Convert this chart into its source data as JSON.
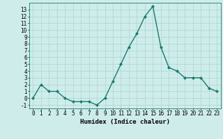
{
  "xlabel": "Humidex (Indice chaleur)",
  "x": [
    0,
    1,
    2,
    3,
    4,
    5,
    6,
    7,
    8,
    9,
    10,
    11,
    12,
    13,
    14,
    15,
    16,
    17,
    18,
    19,
    20,
    21,
    22,
    23
  ],
  "y": [
    0,
    2,
    1,
    1,
    0,
    -0.5,
    -0.5,
    -0.5,
    -1,
    0,
    2.5,
    5,
    7.5,
    9.5,
    12,
    13.5,
    7.5,
    4.5,
    4,
    3,
    3,
    3,
    1.5,
    1
  ],
  "line_color": "#1a7a6e",
  "marker": "D",
  "marker_size": 2.0,
  "bg_color": "#ceecea",
  "grid_color": "#aad4d0",
  "ylim": [
    -1.5,
    14.0
  ],
  "xlim": [
    -0.5,
    23.5
  ],
  "yticks": [
    -1,
    0,
    1,
    2,
    3,
    4,
    5,
    6,
    7,
    8,
    9,
    10,
    11,
    12,
    13
  ],
  "xticks": [
    0,
    1,
    2,
    3,
    4,
    5,
    6,
    7,
    8,
    9,
    10,
    11,
    12,
    13,
    14,
    15,
    16,
    17,
    18,
    19,
    20,
    21,
    22,
    23
  ],
  "xlabel_fontsize": 6.5,
  "tick_fontsize": 5.5,
  "line_width": 1.0
}
